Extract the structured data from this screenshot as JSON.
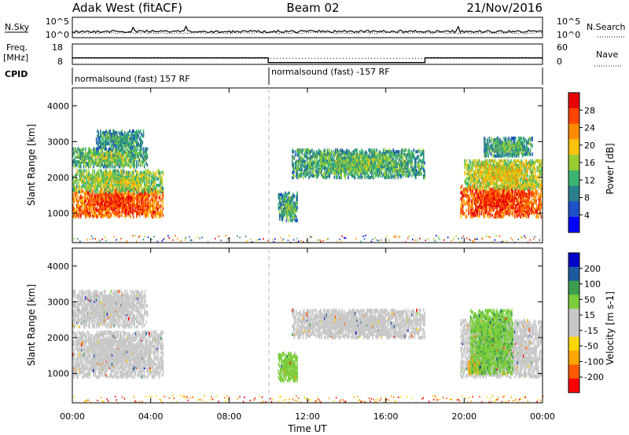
{
  "header": {
    "station": "Adak West (fitACF)",
    "beam": "Beam 02",
    "date": "21/Nov/2016"
  },
  "sky_panel": {
    "left_label": "N.Sky",
    "right_label": "N.Search",
    "left_ticks": [
      "10^5",
      "10^0"
    ],
    "right_ticks": [
      "10^5",
      "10^0"
    ]
  },
  "freq_panel": {
    "left_label_line1": "Freq.",
    "left_label_line2": "[MHz]",
    "right_label": "Nave",
    "left_ticks": [
      "18",
      "8"
    ],
    "right_ticks": [
      "60",
      "0"
    ]
  },
  "cpid_panel": {
    "label": "CPID",
    "segments": [
      {
        "start_hour": 0,
        "end_hour": 10,
        "text": "normalsound (fast) 157 RF"
      },
      {
        "start_hour": 10,
        "end_hour": 24,
        "text": "normalsound (fast) -157 RF"
      }
    ]
  },
  "colors": {
    "power": [
      "#0000ff",
      "#1e50c8",
      "#2a7f8c",
      "#3cb371",
      "#9acd32",
      "#ffc20e",
      "#ff8c00",
      "#ff4500",
      "#e60000"
    ],
    "velocity": [
      "#ff0000",
      "#ff5a00",
      "#ffa500",
      "#ffd700",
      "#c8c8c8",
      "#c8c8c8",
      "#7ccd3c",
      "#3c9e50",
      "#1e5aa0",
      "#0000c8"
    ]
  },
  "chart_data": [
    {
      "type": "heatmap",
      "title": "",
      "ylabel": "Slant Range [km]",
      "colorbar_label": "Power [dB]",
      "colorbar_ticks": [
        "28",
        "24",
        "20",
        "16",
        "12",
        "8",
        "4"
      ],
      "colorbar_range": [
        0,
        32
      ],
      "y_ticks": [
        "4000",
        "3000",
        "2000",
        "1000"
      ],
      "y_tick_values": [
        4000,
        3000,
        2000,
        1000
      ],
      "ylim": [
        180,
        4500
      ],
      "xlim": [
        0,
        24
      ],
      "cpid_change_hour": 10,
      "echo_regions": [
        {
          "t0": 0.0,
          "t1": 4.6,
          "r0": 900,
          "r1": 1700,
          "power": 24
        },
        {
          "t0": 0.0,
          "t1": 4.6,
          "r0": 1600,
          "r1": 2200,
          "power": 14
        },
        {
          "t0": 0.0,
          "t1": 3.8,
          "r0": 2300,
          "r1": 2800,
          "power": 12
        },
        {
          "t0": 1.2,
          "t1": 3.6,
          "r0": 2800,
          "r1": 3300,
          "power": 9
        },
        {
          "t0": 10.5,
          "t1": 11.5,
          "r0": 800,
          "r1": 1600,
          "power": 10
        },
        {
          "t0": 11.2,
          "t1": 18.0,
          "r0": 2000,
          "r1": 2800,
          "power": 11
        },
        {
          "t0": 19.8,
          "t1": 24.0,
          "r0": 900,
          "r1": 1800,
          "power": 25
        },
        {
          "t0": 20.0,
          "t1": 24.0,
          "r0": 1700,
          "r1": 2500,
          "power": 16
        },
        {
          "t0": 21.0,
          "t1": 23.5,
          "r0": 2600,
          "r1": 3100,
          "power": 10
        }
      ]
    },
    {
      "type": "heatmap",
      "title": "",
      "ylabel": "Slant Range [km]",
      "colorbar_label": "Velocity [m s-1]",
      "colorbar_ticks": [
        "200",
        "100",
        "50",
        "15",
        "-15",
        "-50",
        "-100",
        "-200"
      ],
      "colorbar_range": [
        -250,
        250
      ],
      "y_ticks": [
        "4000",
        "3000",
        "2000",
        "1000"
      ],
      "y_tick_values": [
        4000,
        3000,
        2000,
        1000
      ],
      "ylim": [
        180,
        4500
      ],
      "xlim": [
        0,
        24
      ],
      "cpid_change_hour": 10,
      "echo_regions": [
        {
          "t0": 0.0,
          "t1": 4.6,
          "r0": 900,
          "r1": 2200,
          "velocity": 0
        },
        {
          "t0": 0.0,
          "t1": 3.8,
          "r0": 2300,
          "r1": 3300,
          "velocity": 0
        },
        {
          "t0": 10.5,
          "t1": 11.5,
          "r0": 800,
          "r1": 1600,
          "velocity": 30
        },
        {
          "t0": 11.2,
          "t1": 18.0,
          "r0": 2000,
          "r1": 2800,
          "velocity": 0
        },
        {
          "t0": 19.8,
          "t1": 24.0,
          "r0": 900,
          "r1": 2500,
          "velocity": 0
        },
        {
          "t0": 20.2,
          "t1": 21.0,
          "r0": 1000,
          "r1": 1400,
          "velocity": -70
        },
        {
          "t0": 20.3,
          "t1": 22.5,
          "r0": 1000,
          "r1": 2800,
          "velocity": 40
        }
      ]
    }
  ],
  "x_axis": {
    "label": "Time UT",
    "ticks": [
      "00:00",
      "04:00",
      "08:00",
      "12:00",
      "16:00",
      "20:00",
      "00:00"
    ],
    "tick_hours": [
      0,
      4,
      8,
      12,
      16,
      20,
      24
    ]
  }
}
